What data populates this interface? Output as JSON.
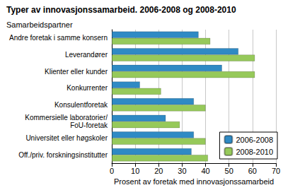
{
  "chart_data": {
    "type": "bar",
    "orientation": "horizontal",
    "title": "Typer av innovasjonssamarbeid. 2006-2008 og 2008-2010",
    "ylabel": "Samarbeidspartner",
    "xlabel": "Prosent av foretak med innovasjonssamarbeid",
    "categories": [
      "Andre foretak i samme konsern",
      "Leverandører",
      "Klienter eller kunder",
      "Konkurrenter",
      "Konsulentforetak",
      "Kommersielle laboratorier/FoU-foretak",
      "Universitet eller høgskoler",
      "Off./priv. forskningsinstitutter"
    ],
    "series": [
      {
        "name": "2006-2008",
        "color": "#2f8ac4",
        "values": [
          37,
          54,
          47,
          12,
          35,
          23,
          35,
          34
        ]
      },
      {
        "name": "2008-2010",
        "color": "#96c95a",
        "values": [
          42,
          61,
          61,
          21,
          40,
          29,
          40,
          41
        ]
      }
    ],
    "xlim": [
      0,
      70
    ],
    "xticks": [
      0,
      10,
      20,
      30,
      40,
      50,
      60,
      70
    ],
    "grid": true,
    "legend": "lower right"
  }
}
